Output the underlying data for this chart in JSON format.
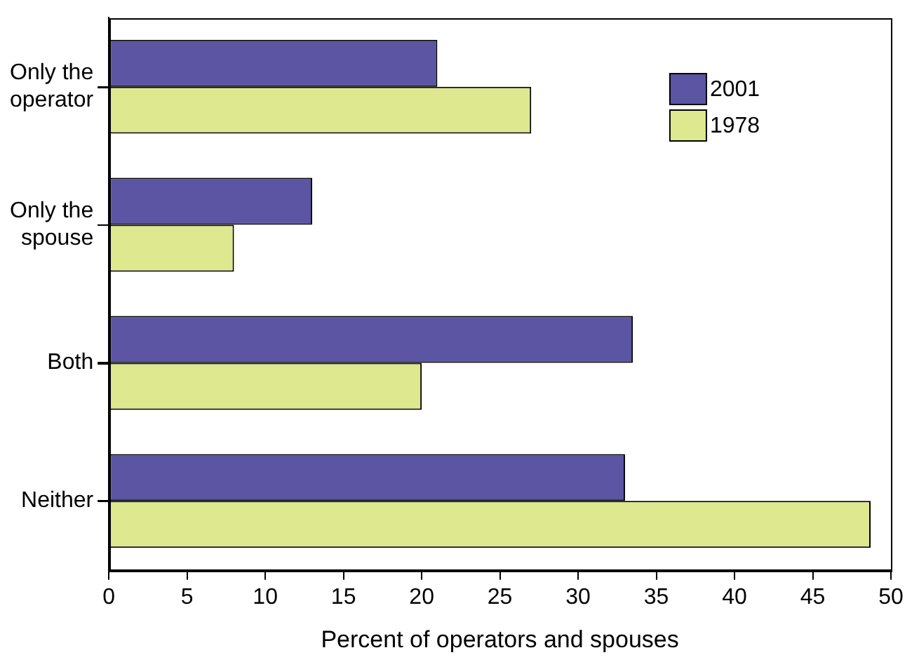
{
  "chart_data": {
    "type": "bar",
    "orientation": "horizontal",
    "xlabel": "Percent of operators and spouses",
    "categories": [
      "Only the operator",
      "Only the spouse",
      "Both",
      "Neither"
    ],
    "series": [
      {
        "name": "2001",
        "color": "#5b55a3",
        "values": [
          21,
          13,
          33.5,
          33
        ]
      },
      {
        "name": "1978",
        "color": "#dde88f",
        "values": [
          27,
          8,
          20,
          48.7
        ]
      }
    ],
    "xlim": [
      0,
      50
    ],
    "xticks": [
      0,
      5,
      10,
      15,
      20,
      25,
      30,
      35,
      40,
      45,
      50
    ],
    "grid": false,
    "legend": "top right"
  }
}
